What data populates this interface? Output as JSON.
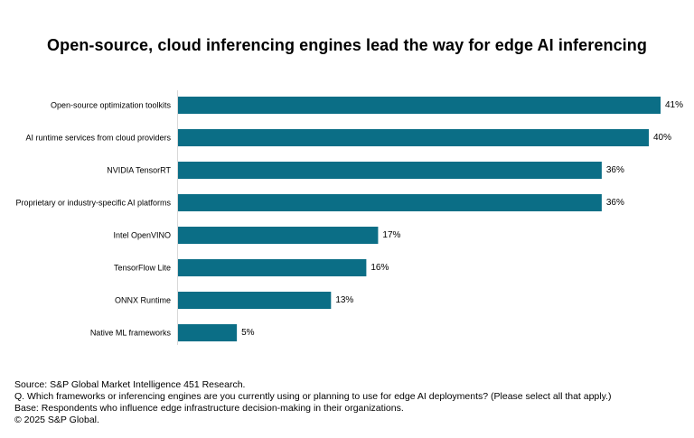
{
  "chart_data": {
    "type": "bar",
    "orientation": "horizontal",
    "title": "Open-source, cloud inferencing engines lead the way for edge AI inferencing",
    "categories": [
      "Open-source optimization toolkits",
      "AI runtime services from cloud providers",
      "NVIDIA TensorRT",
      "Proprietary or industry-specific AI platforms",
      "Intel OpenVINO",
      "TensorFlow Lite",
      "ONNX Runtime",
      "Native ML frameworks"
    ],
    "values": [
      41,
      40,
      36,
      36,
      17,
      16,
      13,
      5
    ],
    "value_labels": [
      "41%",
      "40%",
      "36%",
      "36%",
      "17%",
      "16%",
      "13%",
      "5%"
    ],
    "unit": "%",
    "xlim": [
      0,
      41
    ],
    "grid": false,
    "legend": "none",
    "bar_color": "#0b6e86"
  },
  "footnotes": {
    "source": "Source: S&P Global Market Intelligence 451 Research.",
    "question": "Q. Which frameworks or inferencing engines are you currently using or planning to use for edge AI deployments? (Please select all that apply.)",
    "base": "Base: Respondents who influence edge infrastructure decision-making in their organizations.",
    "copyright": "© 2025 S&P Global."
  }
}
